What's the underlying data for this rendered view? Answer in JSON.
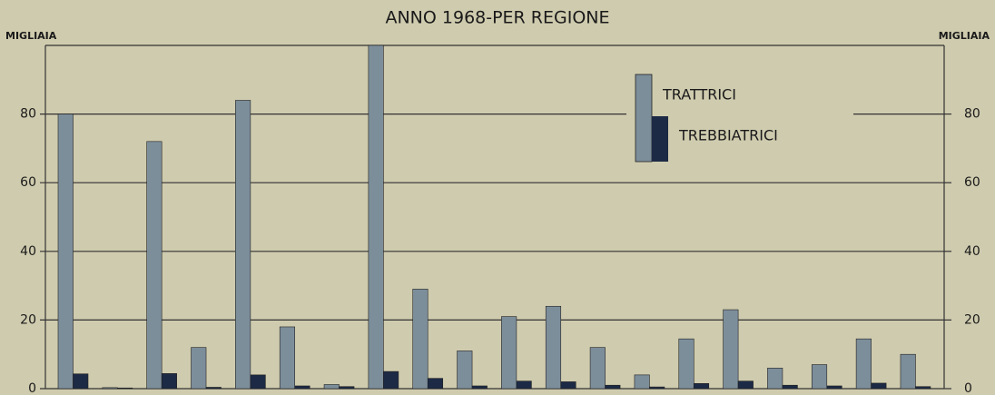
{
  "chart_data": {
    "type": "bar",
    "title": "ANNO 1968-PER REGIONE",
    "y_label": "MIGLIAIA",
    "y2_label": "MIGLIAIA",
    "categories": [
      null,
      null,
      null,
      null,
      null,
      null,
      null,
      null,
      null,
      null,
      null,
      null,
      null,
      null,
      null,
      null,
      null,
      null,
      null,
      null
    ],
    "series": [
      {
        "name": "TRATTRICI",
        "color": "#7d8e9b",
        "values": [
          80,
          0.3,
          72,
          12,
          84,
          18,
          1.2,
          100,
          29,
          11,
          21,
          24,
          12,
          4,
          14.5,
          23,
          6,
          7,
          14.5,
          10
        ]
      },
      {
        "name": "TREBBIATRICI",
        "color": "#1c2a45",
        "values": [
          4.3,
          0.2,
          4.4,
          0.4,
          4.0,
          0.8,
          0.6,
          5.0,
          3.0,
          0.8,
          2.2,
          2.0,
          1.0,
          0.5,
          1.5,
          2.2,
          1.0,
          0.8,
          1.6,
          0.6
        ]
      }
    ],
    "ylim": [
      0,
      100
    ],
    "yticks": [
      0,
      20,
      40,
      60,
      80
    ],
    "y2lim": [
      0,
      100
    ],
    "y2ticks": [
      0,
      20,
      40,
      60,
      80
    ],
    "grid": true
  }
}
